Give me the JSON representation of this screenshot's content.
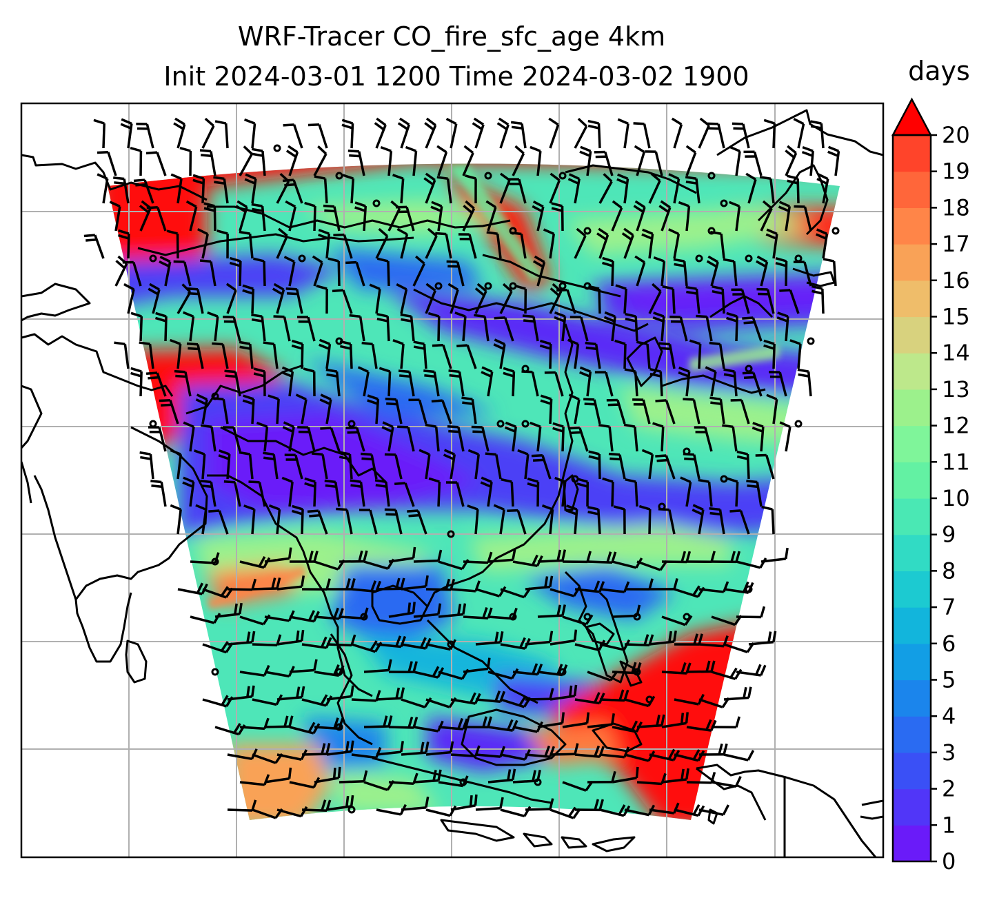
{
  "title": {
    "line1": "WRF-Tracer CO_fire_sfc_age 4km",
    "line2": "Init 2024-03-01 1200 Time 2024-03-02 1900"
  },
  "colorbar": {
    "label": "days",
    "min": 0,
    "max": 20,
    "extend": "max",
    "ticks": [
      "0",
      "1",
      "2",
      "3",
      "4",
      "5",
      "6",
      "7",
      "8",
      "9",
      "10",
      "11",
      "12",
      "13",
      "14",
      "15",
      "16",
      "17",
      "18",
      "19",
      "20"
    ],
    "colors": [
      "#6a1bf9",
      "#5136f8",
      "#3a50f6",
      "#2a6bf2",
      "#1b85ec",
      "#129ee5",
      "#12b5dc",
      "#1ccad1",
      "#31dbc4",
      "#4ae8b4",
      "#63f1a3",
      "#7ff59a",
      "#9cf18c",
      "#bde88b",
      "#d8d27e",
      "#efbd6a",
      "#f9a257",
      "#ff8548",
      "#ff663a",
      "#ff442a",
      "#ff1f17",
      "#ff0000"
    ]
  },
  "map": {
    "field": "CO_fire_sfc_age",
    "units": "days",
    "resolution": "4km",
    "gridlines": true,
    "coastlines": true,
    "wind_barbs": true
  }
}
